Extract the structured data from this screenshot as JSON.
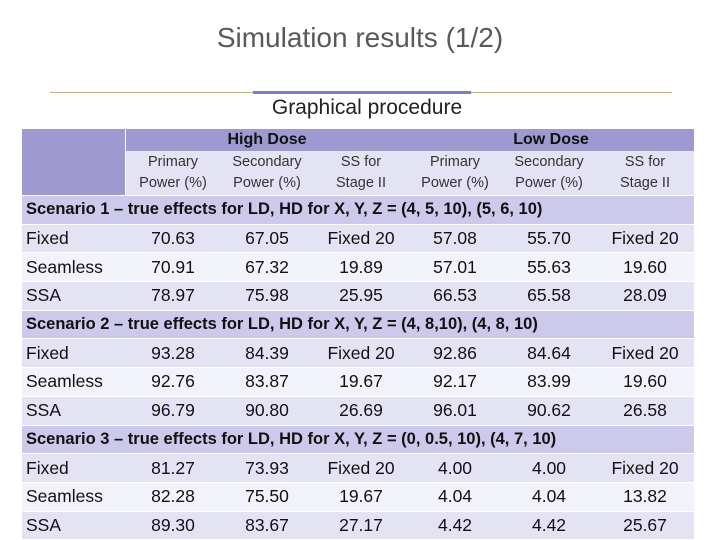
{
  "slide": {
    "title": "Simulation results (1/2)",
    "subtitle": "Graphical procedure"
  },
  "table": {
    "group_headers": [
      "High Dose",
      "Low Dose"
    ],
    "column_headers": [
      [
        "Primary",
        "Power (%)"
      ],
      [
        "Secondary",
        "Power (%)"
      ],
      [
        "SS for",
        "Stage II"
      ],
      [
        "Primary",
        "Power (%)"
      ],
      [
        "Secondary",
        "Power (%)"
      ],
      [
        "SS for",
        "Stage II"
      ]
    ],
    "scenarios": [
      {
        "label": "Scenario 1 – true effects for LD, HD for X, Y, Z = (4, 5, 10), (5, 6, 10)",
        "rows": [
          {
            "method": "Fixed",
            "values": [
              "70.63",
              "67.05",
              "Fixed 20",
              "57.08",
              "55.70",
              "Fixed 20"
            ]
          },
          {
            "method": "Seamless",
            "values": [
              "70.91",
              "67.32",
              "19.89",
              "57.01",
              "55.63",
              "19.60"
            ]
          },
          {
            "method": "SSA",
            "values": [
              "78.97",
              "75.98",
              "25.95",
              "66.53",
              "65.58",
              "28.09"
            ]
          }
        ]
      },
      {
        "label": "Scenario 2 – true effects for LD, HD for X, Y, Z = (4, 8,10), (4, 8, 10)",
        "rows": [
          {
            "method": "Fixed",
            "values": [
              "93.28",
              "84.39",
              "Fixed 20",
              "92.86",
              "84.64",
              "Fixed 20"
            ]
          },
          {
            "method": "Seamless",
            "values": [
              "92.76",
              "83.87",
              "19.67",
              "92.17",
              "83.99",
              "19.60"
            ]
          },
          {
            "method": "SSA",
            "values": [
              "96.79",
              "90.80",
              "26.69",
              "96.01",
              "90.62",
              "26.58"
            ]
          }
        ]
      },
      {
        "label": "Scenario 3 – true effects for LD, HD for X, Y, Z = (0, 0.5, 10), (4, 7, 10)",
        "rows": [
          {
            "method": "Fixed",
            "values": [
              "81.27",
              "73.93",
              "Fixed 20",
              "4.00",
              "4.00",
              "Fixed 20"
            ]
          },
          {
            "method": "Seamless",
            "values": [
              "82.28",
              "75.50",
              "19.67",
              "4.04",
              "4.04",
              "13.82"
            ]
          },
          {
            "method": "SSA",
            "values": [
              "89.30",
              "83.67",
              "27.17",
              "4.42",
              "4.42",
              "25.67"
            ]
          }
        ]
      }
    ]
  }
}
